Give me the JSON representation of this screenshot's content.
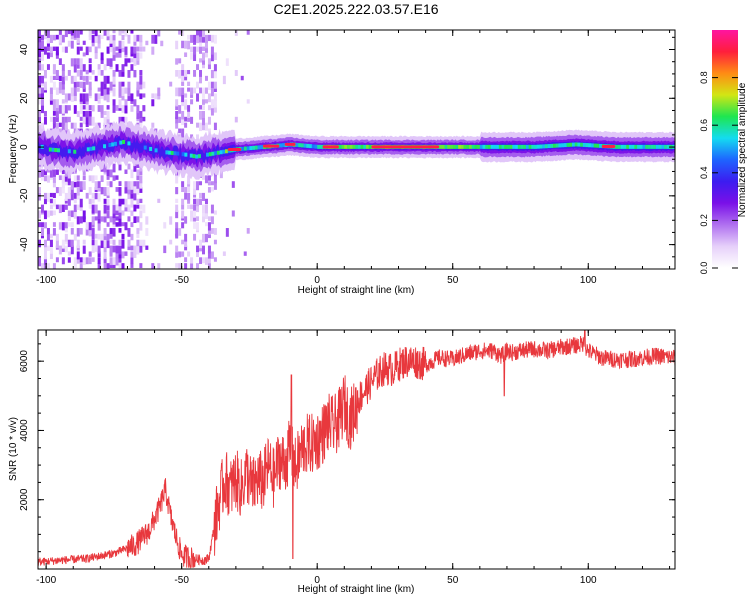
{
  "title": "C2E1.2025.222.03.57.E16",
  "colors": {
    "snr_line": "#e8383d",
    "spectrogram_background": "#ffffff",
    "colormap": [
      "#ffffff",
      "#e6d0fa",
      "#b070f0",
      "#7a10e8",
      "#3c1cf0",
      "#1e64ff",
      "#14dcf0",
      "#1ee650",
      "#d2e614",
      "#ff8c14",
      "#ff1e3c",
      "#ff14a0"
    ]
  },
  "chart_data": [
    {
      "type": "heatmap",
      "xlabel": "Height of straight line (km)",
      "ylabel": "Frequency (Hz)",
      "xlim": [
        -103,
        132
      ],
      "ylim": [
        -50,
        48
      ],
      "x_ticks": [
        -100,
        -50,
        0,
        50,
        100
      ],
      "y_ticks": [
        40,
        20,
        0,
        -20,
        -40
      ],
      "x_tick_labels": [
        "-100",
        "-50",
        "0",
        "50",
        "100"
      ],
      "y_tick_labels": [
        "40",
        "20",
        "0",
        "-20",
        "-40"
      ],
      "grid": false,
      "description_of_signal": {
        "carrier_frequency_hz": 0,
        "centerline_points": [
          [
            -100,
            -1
          ],
          [
            -90,
            -2
          ],
          [
            -80,
            0
          ],
          [
            -72,
            2
          ],
          [
            -65,
            0
          ],
          [
            -58,
            -2
          ],
          [
            -50,
            -3
          ],
          [
            -45,
            -4
          ],
          [
            -40,
            -3
          ],
          [
            -30,
            -1
          ],
          [
            -20,
            0
          ],
          [
            -10,
            1
          ],
          [
            0,
            0
          ],
          [
            50,
            0
          ],
          [
            80,
            0
          ],
          [
            95,
            1
          ],
          [
            110,
            0
          ],
          [
            132,
            0
          ]
        ],
        "peak_segments_km": [
          [
            -33,
            -28
          ],
          [
            -20,
            -14
          ],
          [
            -12,
            -8
          ],
          [
            2,
            8
          ],
          [
            20,
            45
          ],
          [
            105,
            110
          ]
        ]
      },
      "colorbar": {
        "label": "Normalized spectral amplitude",
        "range": [
          0.0,
          1.0
        ],
        "ticks": [
          0.0,
          0.2,
          0.4,
          0.6,
          0.8
        ],
        "tick_labels": [
          "0.0",
          "0.2",
          "0.4",
          "0.6",
          "0.8"
        ]
      }
    },
    {
      "type": "line",
      "xlabel": "Height of straight line (km)",
      "ylabel": "SNR (10 * v/v)",
      "xlim": [
        -103,
        132
      ],
      "ylim": [
        0,
        6900
      ],
      "x_ticks": [
        -100,
        -50,
        0,
        50,
        100
      ],
      "y_ticks": [
        2000,
        4000,
        6000
      ],
      "x_tick_labels": [
        "-100",
        "-50",
        "0",
        "50",
        "100"
      ],
      "y_tick_labels": [
        "2000",
        "4000",
        "6000"
      ],
      "grid": false,
      "series": [
        {
          "x": [
            -103,
            -95,
            -85,
            -75,
            -67,
            -62,
            -58,
            -56,
            -54,
            -52,
            -50,
            -46,
            -42,
            -40,
            -38,
            -36,
            -34,
            -32,
            -30,
            -28,
            -26,
            -24,
            -22,
            -20,
            -18,
            -16,
            -14,
            -12,
            -10,
            -8,
            -6,
            -4,
            -2,
            0,
            2,
            4,
            6,
            8,
            10,
            12,
            14,
            16,
            18,
            20,
            22,
            25,
            28,
            30,
            33,
            36,
            40,
            45,
            50,
            55,
            60,
            65,
            68,
            70,
            72,
            75,
            80,
            85,
            90,
            95,
            98,
            100,
            105,
            110,
            115,
            120,
            125,
            132
          ],
          "y": [
            200,
            250,
            300,
            450,
            700,
            1100,
            1800,
            2300,
            1500,
            900,
            400,
            300,
            250,
            300,
            1200,
            2000,
            2600,
            2300,
            2600,
            2300,
            2800,
            2300,
            2600,
            2500,
            3000,
            2600,
            3200,
            3000,
            3500,
            2900,
            3400,
            3600,
            3600,
            3700,
            3900,
            4200,
            4100,
            4300,
            4800,
            4300,
            4600,
            5000,
            5200,
            5400,
            5600,
            5800,
            5750,
            5900,
            6000,
            6000,
            5900,
            6100,
            6050,
            6200,
            6300,
            6300,
            6150,
            6300,
            6250,
            6300,
            6350,
            6300,
            6400,
            6450,
            6500,
            6300,
            6100,
            6050,
            6050,
            6100,
            6150,
            6100
          ]
        }
      ]
    }
  ]
}
